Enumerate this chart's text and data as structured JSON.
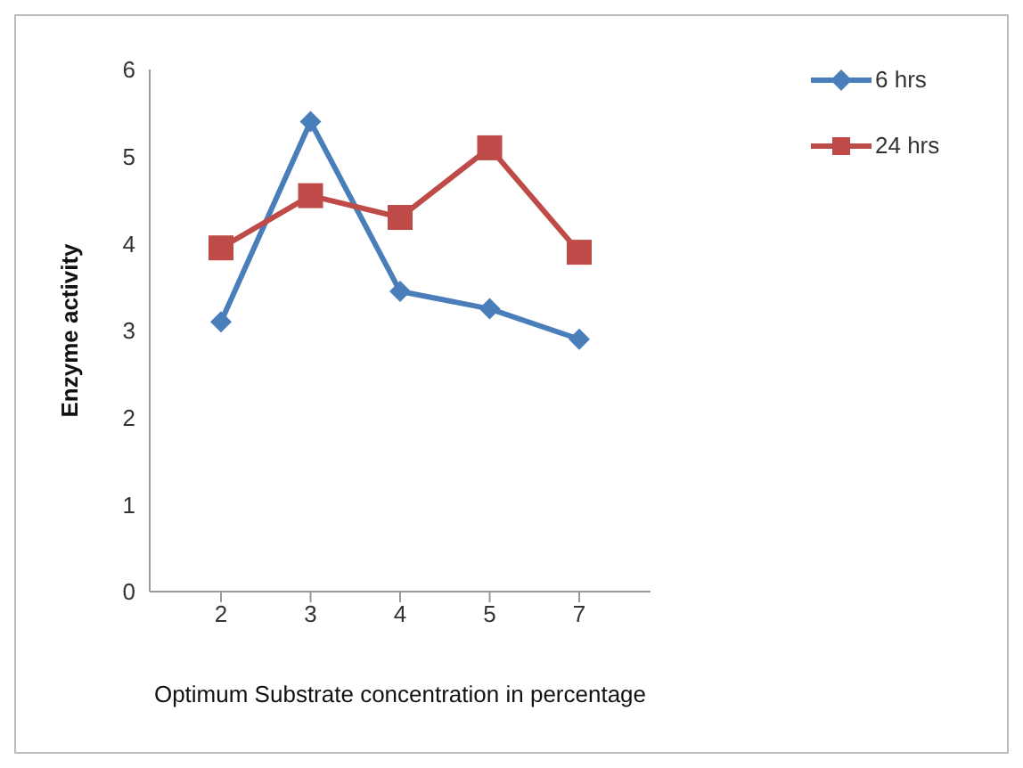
{
  "chart_data": {
    "type": "line",
    "xlabel": "Optimum Substrate concentration in percentage",
    "ylabel": "Enzyme activity",
    "categories": [
      "2",
      "3",
      "4",
      "5",
      "7"
    ],
    "series": [
      {
        "name": "6 hrs",
        "color": "#4a7ebb",
        "marker": "diamond",
        "values": [
          3.1,
          5.4,
          3.45,
          3.25,
          2.9
        ]
      },
      {
        "name": "24 hrs",
        "color": "#be4b48",
        "marker": "square",
        "values": [
          3.95,
          4.55,
          4.3,
          5.1,
          3.9
        ]
      }
    ],
    "ylim": [
      0,
      6
    ],
    "yticks": [
      0,
      1,
      2,
      3,
      4,
      5,
      6
    ],
    "grid": false,
    "legend": "top right",
    "line_style": "solid"
  }
}
